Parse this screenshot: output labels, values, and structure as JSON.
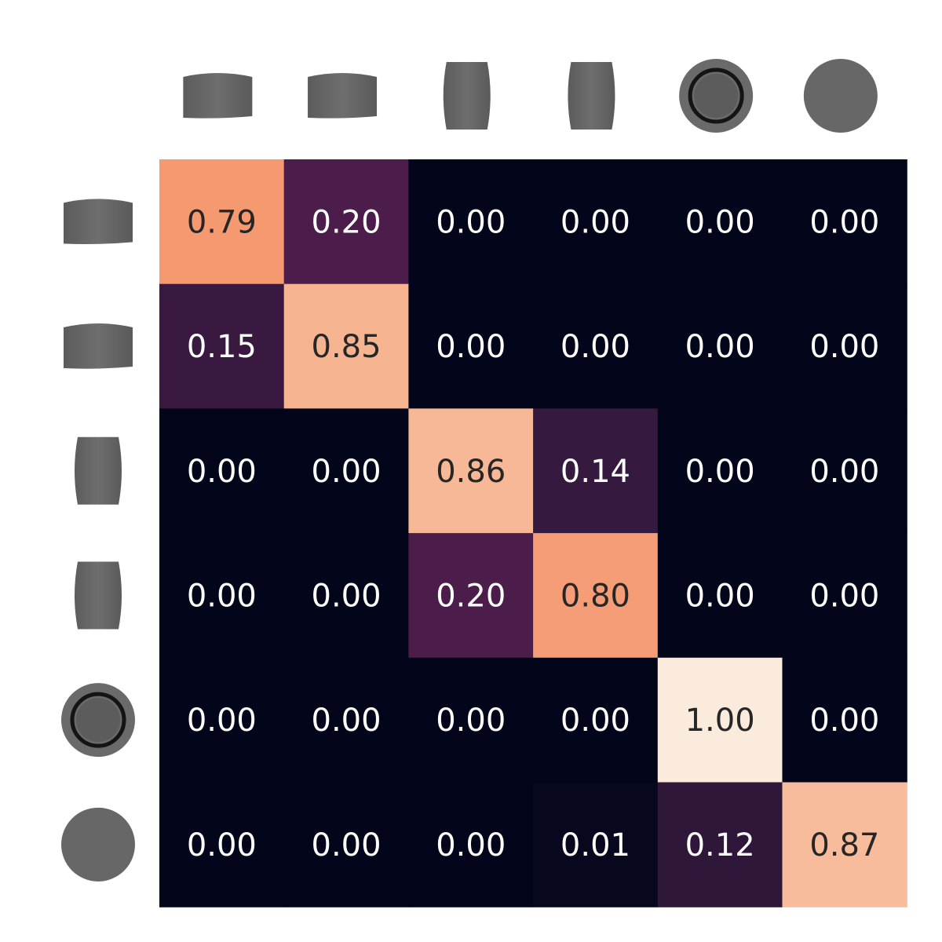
{
  "chart_data": {
    "type": "heatmap",
    "title": "",
    "xlabel": "",
    "ylabel": "",
    "value_range": [
      0,
      1
    ],
    "value_format": "2-decimal",
    "colormap": "rocket",
    "colors": {
      "low": "#03051a",
      "high": "#faebdd",
      "text_on_dark": "#ffffff",
      "text_on_light": "#262626",
      "background": "#ffffff",
      "icon_fill": "#676767"
    },
    "x_tick_icons": [
      "cylinder-side-view-icon",
      "cylinder-side-view-icon",
      "cylinder-upright-view-icon",
      "cylinder-upright-view-icon",
      "cylinder-top-view-icon",
      "disc-bottom-view-icon"
    ],
    "y_tick_icons": [
      "cylinder-side-view-icon",
      "cylinder-side-view-icon",
      "cylinder-upright-view-icon",
      "cylinder-upright-view-icon",
      "cylinder-top-view-icon",
      "disc-bottom-view-icon"
    ],
    "values": [
      [
        0.79,
        0.2,
        0.0,
        0.0,
        0.0,
        0.0
      ],
      [
        0.15,
        0.85,
        0.0,
        0.0,
        0.0,
        0.0
      ],
      [
        0.0,
        0.0,
        0.86,
        0.14,
        0.0,
        0.0
      ],
      [
        0.0,
        0.0,
        0.2,
        0.8,
        0.0,
        0.0
      ],
      [
        0.0,
        0.0,
        0.0,
        0.0,
        1.0,
        0.0
      ],
      [
        0.0,
        0.0,
        0.0,
        0.01,
        0.12,
        0.87
      ]
    ]
  }
}
